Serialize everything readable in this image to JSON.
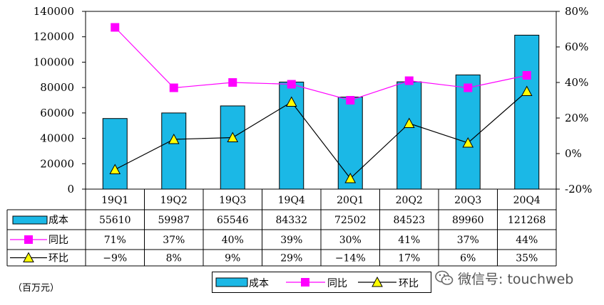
{
  "chart_data": {
    "type": "bar",
    "categories": [
      "19Q1",
      "19Q2",
      "19Q3",
      "19Q4",
      "20Q1",
      "20Q2",
      "20Q3",
      "20Q4"
    ],
    "series": [
      {
        "name": "成本",
        "kind": "bar",
        "axis": "left",
        "values": [
          55610,
          59987,
          65546,
          84332,
          72502,
          84523,
          89960,
          121268
        ],
        "labels": [
          "55610",
          "59987",
          "65546",
          "84332",
          "72502",
          "84523",
          "89960",
          "121268"
        ]
      },
      {
        "name": "同比",
        "kind": "line",
        "axis": "right",
        "marker": "square",
        "values": [
          71,
          37,
          40,
          39,
          30,
          41,
          37,
          44
        ],
        "labels": [
          "71%",
          "37%",
          "40%",
          "39%",
          "30%",
          "41%",
          "37%",
          "44%"
        ]
      },
      {
        "name": "环比",
        "kind": "line",
        "axis": "right",
        "marker": "triangle",
        "values": [
          -9,
          8,
          9,
          29,
          -14,
          17,
          6,
          35
        ],
        "labels": [
          "−9%",
          "8%",
          "9%",
          "29%",
          "−14%",
          "17%",
          "6%",
          "35%"
        ]
      }
    ],
    "ylim_left": [
      0,
      140000
    ],
    "yticks_left": [
      "0",
      "20000",
      "40000",
      "60000",
      "80000",
      "100000",
      "120000",
      "140000"
    ],
    "ylim_right": [
      -20,
      80
    ],
    "yticks_right": [
      "-20%",
      "0%",
      "20%",
      "40%",
      "60%",
      "80%"
    ],
    "grid": false,
    "legend_position": "bottom-center"
  },
  "unit_note": "（百万元）",
  "watermark": {
    "text": "微信号: touchweb"
  },
  "colors": {
    "bar": "#1bb8e6",
    "yoy": "#ff00ff",
    "qoq": "#ffff00",
    "line": "#000000"
  }
}
